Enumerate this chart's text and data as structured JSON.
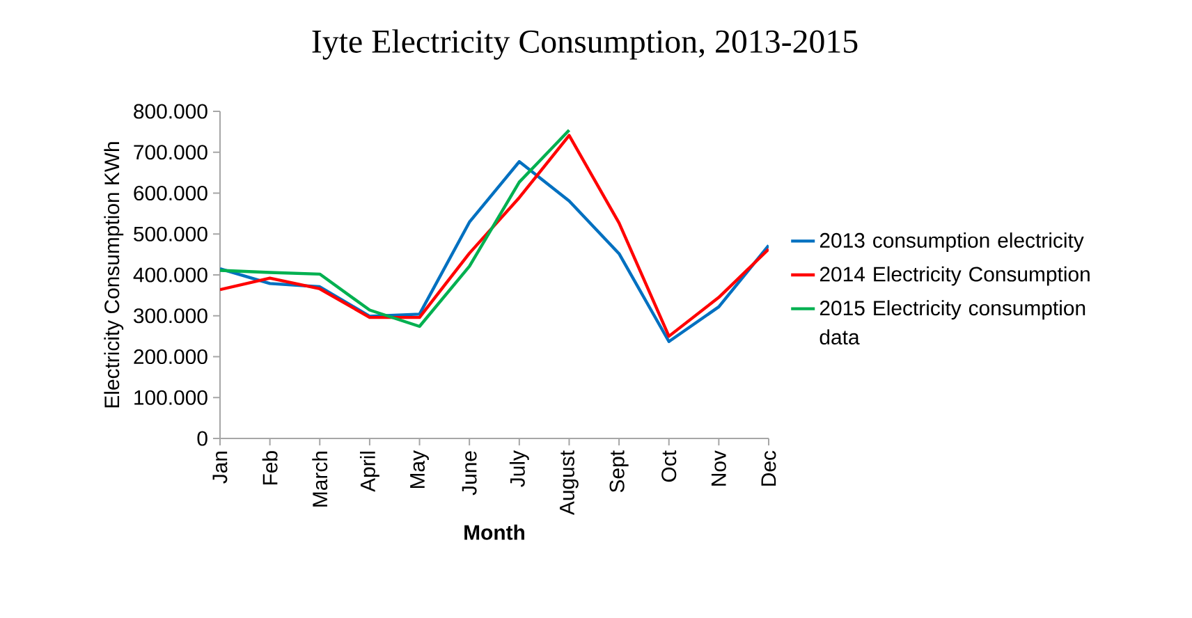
{
  "chart_data": {
    "type": "line",
    "title": "Iyte Electricity Consumption, 2013-2015",
    "xlabel": "Month",
    "ylabel": "Electricity Consumption KWh",
    "categories": [
      "Jan",
      "Feb",
      "March",
      "April",
      "May",
      "June",
      "July",
      "August",
      "Sept",
      "Oct",
      "Nov",
      "Dec"
    ],
    "series": [
      {
        "name": "2013 consumption electricity",
        "color": "#0070c0",
        "values": [
          415000,
          379000,
          371000,
          299000,
          304000,
          529000,
          677000,
          581000,
          452000,
          237000,
          322000,
          472000
        ]
      },
      {
        "name": "2014 Electricity Consumption",
        "color": "#ff0000",
        "values": [
          364000,
          392000,
          366000,
          296000,
          296000,
          453000,
          589000,
          741000,
          527000,
          250000,
          345000,
          463000
        ]
      },
      {
        "name": "2015 Electricity consumption data",
        "color": "#00b050",
        "values": [
          411000,
          406000,
          402000,
          314000,
          274000,
          421000,
          627000,
          754000,
          null,
          null,
          null,
          null
        ]
      }
    ],
    "ylim": [
      0,
      800000
    ],
    "yticks": [
      0,
      {
        "value": 100000,
        "label": "100.000"
      },
      {
        "value": 200000,
        "label": "200.000"
      },
      {
        "value": 300000,
        "label": "300.000"
      },
      {
        "value": 400000,
        "label": "400.000"
      },
      {
        "value": 500000,
        "label": "500.000"
      },
      {
        "value": 600000,
        "label": "600.000"
      },
      {
        "value": 700000,
        "label": "700.000"
      },
      {
        "value": 800000,
        "label": "800.000"
      }
    ],
    "grid": false,
    "legend": "right",
    "marker": "none",
    "line_style": "solid"
  }
}
